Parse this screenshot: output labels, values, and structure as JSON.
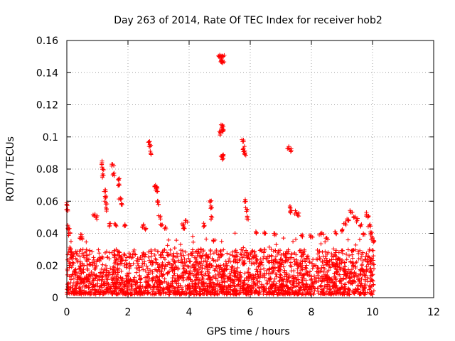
{
  "chart_data": {
    "type": "scatter",
    "title": "Day 263 of 2014, Rate Of TEC Index for receiver hob2",
    "xlabel": "GPS time / hours",
    "ylabel": "ROTI / TECUs",
    "xlim": [
      0,
      12
    ],
    "ylim": [
      0,
      0.16
    ],
    "xticks": [
      0,
      2,
      4,
      6,
      8,
      10,
      12
    ],
    "yticks": [
      0,
      0.02,
      0.04,
      0.06,
      0.08,
      0.1,
      0.12,
      0.14,
      0.16
    ],
    "xtick_labels": [
      "0",
      "2",
      "4",
      "6",
      "8",
      "10",
      "12"
    ],
    "ytick_labels": [
      "0",
      "0.02",
      "0.04",
      "0.06",
      "0.08",
      "0.1",
      "0.12",
      "0.14",
      "0.16"
    ],
    "grid": true,
    "marker": "+",
    "color": "#ff0000",
    "series": [
      {
        "name": "ROTI",
        "points": [
          [
            0.0,
            0.058
          ],
          [
            0.02,
            0.055
          ],
          [
            0.05,
            0.044
          ],
          [
            0.08,
            0.043
          ],
          [
            0.1,
            0.04
          ],
          [
            0.12,
            0.03
          ],
          [
            0.15,
            0.025
          ],
          [
            0.45,
            0.038
          ],
          [
            0.5,
            0.037
          ],
          [
            0.9,
            0.051
          ],
          [
            0.95,
            0.05
          ],
          [
            1.15,
            0.084
          ],
          [
            1.18,
            0.08
          ],
          [
            1.2,
            0.076
          ],
          [
            1.22,
            0.066
          ],
          [
            1.25,
            0.063
          ],
          [
            1.28,
            0.059
          ],
          [
            1.3,
            0.055
          ],
          [
            1.4,
            0.045
          ],
          [
            1.5,
            0.083
          ],
          [
            1.52,
            0.077
          ],
          [
            1.6,
            0.045
          ],
          [
            1.7,
            0.073
          ],
          [
            1.72,
            0.07
          ],
          [
            1.75,
            0.062
          ],
          [
            1.78,
            0.058
          ],
          [
            1.9,
            0.045
          ],
          [
            2.5,
            0.045
          ],
          [
            2.55,
            0.043
          ],
          [
            2.7,
            0.097
          ],
          [
            2.72,
            0.094
          ],
          [
            2.75,
            0.09
          ],
          [
            2.9,
            0.07
          ],
          [
            2.92,
            0.068
          ],
          [
            2.95,
            0.066
          ],
          [
            2.97,
            0.06
          ],
          [
            3.0,
            0.058
          ],
          [
            3.05,
            0.05
          ],
          [
            3.1,
            0.045
          ],
          [
            3.2,
            0.043
          ],
          [
            3.8,
            0.045
          ],
          [
            3.85,
            0.043
          ],
          [
            3.9,
            0.048
          ],
          [
            4.5,
            0.045
          ],
          [
            4.7,
            0.06
          ],
          [
            4.72,
            0.056
          ],
          [
            4.75,
            0.05
          ],
          [
            4.8,
            0.035
          ],
          [
            5.0,
            0.151
          ],
          [
            5.02,
            0.149
          ],
          [
            5.05,
            0.148
          ],
          [
            5.07,
            0.147
          ],
          [
            5.1,
            0.146
          ],
          [
            5.12,
            0.15
          ],
          [
            5.02,
            0.102
          ],
          [
            5.05,
            0.105
          ],
          [
            5.08,
            0.107
          ],
          [
            5.1,
            0.104
          ],
          [
            5.05,
            0.088
          ],
          [
            5.08,
            0.087
          ],
          [
            5.12,
            0.089
          ],
          [
            5.75,
            0.097
          ],
          [
            5.78,
            0.093
          ],
          [
            5.8,
            0.091
          ],
          [
            5.82,
            0.089
          ],
          [
            5.85,
            0.06
          ],
          [
            5.88,
            0.055
          ],
          [
            5.9,
            0.05
          ],
          [
            6.2,
            0.04
          ],
          [
            6.5,
            0.04
          ],
          [
            6.8,
            0.04
          ],
          [
            7.25,
            0.093
          ],
          [
            7.3,
            0.092
          ],
          [
            7.3,
            0.057
          ],
          [
            7.32,
            0.054
          ],
          [
            7.5,
            0.053
          ],
          [
            7.55,
            0.052
          ],
          [
            7.7,
            0.038
          ],
          [
            8.0,
            0.038
          ],
          [
            8.3,
            0.04
          ],
          [
            8.5,
            0.037
          ],
          [
            8.8,
            0.04
          ],
          [
            9.0,
            0.042
          ],
          [
            9.1,
            0.046
          ],
          [
            9.2,
            0.048
          ],
          [
            9.3,
            0.053
          ],
          [
            9.4,
            0.05
          ],
          [
            9.5,
            0.048
          ],
          [
            9.6,
            0.045
          ],
          [
            9.7,
            0.04
          ],
          [
            9.8,
            0.052
          ],
          [
            9.85,
            0.05
          ],
          [
            9.9,
            0.045
          ],
          [
            9.95,
            0.04
          ],
          [
            10.0,
            0.037
          ],
          [
            10.05,
            0.035
          ]
        ],
        "dense_band": {
          "x_start": 0,
          "x_end": 10.05,
          "y_min": 0.002,
          "y_typical_max": 0.03
        }
      }
    ]
  }
}
